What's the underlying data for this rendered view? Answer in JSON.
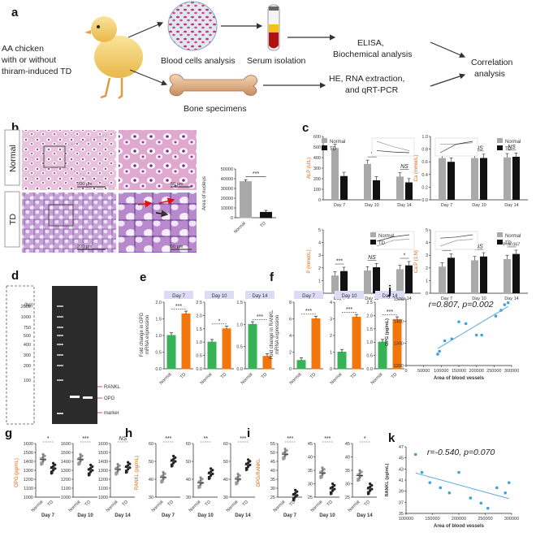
{
  "panels": {
    "a": {
      "label": "a",
      "source": "AA chicken\nwith or without\nthiram-induced TD",
      "blood": "Blood cells analysis",
      "serum": "Serum isolation",
      "bone": "Bone specimens",
      "elisa": "ELISA,\nBiochemical analysis",
      "hernaqpcr": "HE, RNA extraction,\nand qRT-PCR",
      "correlation": "Correlation\nanalysis"
    },
    "b": {
      "label": "b",
      "row_normal": "Normal",
      "row_td": "TD",
      "scale_200": "200 µm",
      "scale_50": "50 µm",
      "bar_chart": {
        "ylabel": "Area of nucleus",
        "categories": [
          "Normal",
          "TD"
        ],
        "values": [
          37000,
          5500
        ],
        "ticks": [
          "0",
          "10000",
          "20000",
          "30000",
          "40000",
          "50000"
        ],
        "ylim": [
          0,
          50000
        ],
        "sig": "***"
      }
    },
    "c": {
      "label": "c",
      "legend": [
        "Normal",
        "TD"
      ],
      "days": [
        "Day 7",
        "Day 10",
        "Day 14"
      ],
      "charts": [
        {
          "ylabel": "ALP (U/L)",
          "ticks": [
            "0",
            "100",
            "200",
            "300",
            "400",
            "500",
            "600"
          ],
          "ylim": [
            0,
            600
          ],
          "normal": [
            490,
            340,
            220
          ],
          "td": [
            225,
            185,
            165
          ],
          "sig": [
            "",
            "*",
            "NS"
          ]
        },
        {
          "ylabel": "Ca (mmol/L)",
          "ticks": [
            "0.0",
            "0.2",
            "0.4",
            "0.6",
            "0.8",
            "1.0"
          ],
          "ylim": [
            0,
            1.0
          ],
          "normal": [
            0.66,
            0.66,
            0.67
          ],
          "td": [
            0.6,
            0.66,
            0.68
          ],
          "sig": [
            "*",
            "NS",
            "NS"
          ]
        },
        {
          "ylabel": "P (mmol/L)",
          "ticks": [
            "0",
            "1",
            "2",
            "3",
            "4",
            "5"
          ],
          "ylim": [
            0,
            5
          ],
          "normal": [
            1.4,
            1.8,
            1.9
          ],
          "td": [
            1.75,
            2.05,
            2.2
          ],
          "sig": [
            "***",
            "NS",
            "*"
          ]
        },
        {
          "ylabel": "Ca:P (1:N)",
          "ticks": [
            "0",
            "1",
            "2",
            "3",
            "4",
            "5"
          ],
          "ylim": [
            0,
            5
          ],
          "normal": [
            2.1,
            2.6,
            2.7
          ],
          "td": [
            2.8,
            2.9,
            3.1
          ],
          "sig": [
            "***",
            "NS",
            "P=0.067"
          ]
        }
      ]
    },
    "d": {
      "label": "d",
      "bp": "(bp)",
      "ladder": [
        "2000",
        "1000",
        "750",
        "500",
        "400",
        "300",
        "200",
        "100"
      ],
      "bands": [
        "RANKL",
        "OPG",
        "marker"
      ]
    },
    "e": {
      "label": "e",
      "ylabel": "Fold change in OPG\nmRNA expression",
      "charts": [
        {
          "day": "Day 7",
          "ticks": [
            "0.0",
            "0.5",
            "1.0",
            "1.5",
            "2.0"
          ],
          "ylim": [
            0,
            2.0
          ],
          "values": [
            1.0,
            1.65
          ],
          "sig": "***"
        },
        {
          "day": "Day 10",
          "ticks": [
            "0.0",
            "0.5",
            "1.0",
            "1.5",
            "2.0",
            "2.5"
          ],
          "ylim": [
            0,
            2.5
          ],
          "values": [
            1.0,
            1.5
          ],
          "sig": "*"
        },
        {
          "day": "Day 14",
          "ticks": [
            "0.0",
            "0.5",
            "1.0",
            "1.5"
          ],
          "ylim": [
            0,
            1.5
          ],
          "values": [
            1.0,
            0.28
          ],
          "sig": "***"
        }
      ],
      "categories": [
        "Normal",
        "TD"
      ]
    },
    "f": {
      "label": "f",
      "ylabel": "Fold change in RANKL\nmRNA expression",
      "charts": [
        {
          "day": "Day 7",
          "ticks": [
            "0",
            "2",
            "4",
            "6",
            "8"
          ],
          "ylim": [
            0,
            8
          ],
          "values": [
            1.0,
            6.0
          ],
          "sig": "***"
        },
        {
          "day": "Day 10",
          "ticks": [
            "0",
            "1",
            "2",
            "3",
            "4"
          ],
          "ylim": [
            0,
            4
          ],
          "values": [
            1.0,
            3.1
          ],
          "sig": "***"
        },
        {
          "day": "Day 14",
          "ticks": [
            "0.0",
            "0.5",
            "1.0",
            "1.5",
            "2.0",
            "2.5"
          ],
          "ylim": [
            0,
            2.5
          ],
          "values": [
            1.0,
            1.85
          ],
          "sig": "***"
        }
      ],
      "categories": [
        "Normal",
        "TD"
      ]
    },
    "g": {
      "label": "g",
      "ylabel": "OPG (pg/mL)",
      "charts": [
        {
          "day": "Day 7",
          "ticks": [
            "1000",
            "1100",
            "1200",
            "1300",
            "1400",
            "1500",
            "1600"
          ],
          "ylim": [
            1000,
            1600
          ],
          "values": [
            1420,
            1320
          ],
          "sig": "*"
        },
        {
          "day": "Day 10",
          "ticks": [
            "1000",
            "1100",
            "1200",
            "1300",
            "1400",
            "1500",
            "1600"
          ],
          "ylim": [
            1000,
            1600
          ],
          "values": [
            1420,
            1300
          ],
          "sig": "***"
        },
        {
          "day": "Day 14",
          "ticks": [
            "1000",
            "1100",
            "1200",
            "1300",
            "1400",
            "1500",
            "1600"
          ],
          "ylim": [
            1000,
            1600
          ],
          "values": [
            1310,
            1330
          ],
          "sig": "NS"
        }
      ],
      "categories": [
        "Normal",
        "TD"
      ]
    },
    "h": {
      "label": "h",
      "ylabel": "RANKL (pg/mL)",
      "charts": [
        {
          "day": "Day 7",
          "ticks": [
            "30",
            "40",
            "50",
            "60"
          ],
          "ylim": [
            30,
            60
          ],
          "values": [
            41,
            50
          ],
          "sig": "***"
        },
        {
          "day": "Day 10",
          "ticks": [
            "30",
            "40",
            "50",
            "60"
          ],
          "ylim": [
            30,
            60
          ],
          "values": [
            38,
            43
          ],
          "sig": "**"
        },
        {
          "day": "Day 14",
          "ticks": [
            "30",
            "40",
            "50",
            "60"
          ],
          "ylim": [
            30,
            60
          ],
          "values": [
            40,
            48
          ],
          "sig": "***"
        }
      ],
      "categories": [
        "Normal",
        "TD"
      ]
    },
    "i": {
      "label": "i",
      "ylabel": "OPG/RANKL",
      "charts": [
        {
          "day": "Day 7",
          "ticks": [
            "25",
            "30",
            "35",
            "40",
            "45",
            "50",
            "55"
          ],
          "ylim": [
            25,
            55
          ],
          "values": [
            49,
            26
          ],
          "sig": "***"
        },
        {
          "day": "Day 10",
          "ticks": [
            "25",
            "30",
            "35",
            "40",
            "45"
          ],
          "ylim": [
            25,
            45
          ],
          "values": [
            34,
            28
          ],
          "sig": "***"
        },
        {
          "day": "Day 14",
          "ticks": [
            "25",
            "30",
            "35",
            "40",
            "45"
          ],
          "ylim": [
            25,
            45
          ],
          "values": [
            33,
            28
          ],
          "sig": "*"
        }
      ],
      "categories": [
        "Normal",
        "TD"
      ]
    },
    "j": {
      "label": "j",
      "stat": "r=0.807, p=0.002",
      "xlabel": "Area of blood vessels",
      "ylabel": "OPG (pg/mL)",
      "xticks": [
        "0",
        "50000",
        "100000",
        "150000",
        "200000",
        "250000",
        "300000"
      ],
      "yticks": [
        "1200",
        "1300",
        "1400",
        "1500"
      ],
      "xlim": [
        0,
        300000
      ],
      "ylim": [
        1150,
        1500
      ],
      "points": [
        [
          90000,
          1210
        ],
        [
          95000,
          1225
        ],
        [
          110000,
          1280
        ],
        [
          130000,
          1290
        ],
        [
          150000,
          1380
        ],
        [
          170000,
          1370
        ],
        [
          200000,
          1310
        ],
        [
          215000,
          1310
        ],
        [
          255000,
          1410
        ],
        [
          280000,
          1470
        ],
        [
          290000,
          1480
        ],
        [
          270000,
          1440
        ]
      ]
    },
    "k": {
      "label": "k",
      "stat": "r=-0.540, p=0.070",
      "xlabel": "Area of blood vessels",
      "ylabel": "RANKL (pg/mL)",
      "xticks": [
        "100000",
        "150000",
        "200000",
        "250000",
        "300000"
      ],
      "yticks": [
        "35",
        "37",
        "39",
        "41",
        "43",
        "45",
        "47"
      ],
      "xlim": [
        100000,
        300000
      ],
      "ylim": [
        35,
        48
      ],
      "points": [
        [
          118000,
          46.5
        ],
        [
          130000,
          43
        ],
        [
          145000,
          41
        ],
        [
          165000,
          40
        ],
        [
          182000,
          39
        ],
        [
          200000,
          43
        ],
        [
          222000,
          38
        ],
        [
          242000,
          37
        ],
        [
          255000,
          36
        ],
        [
          272000,
          40
        ],
        [
          288000,
          39
        ],
        [
          295000,
          41
        ]
      ]
    }
  }
}
